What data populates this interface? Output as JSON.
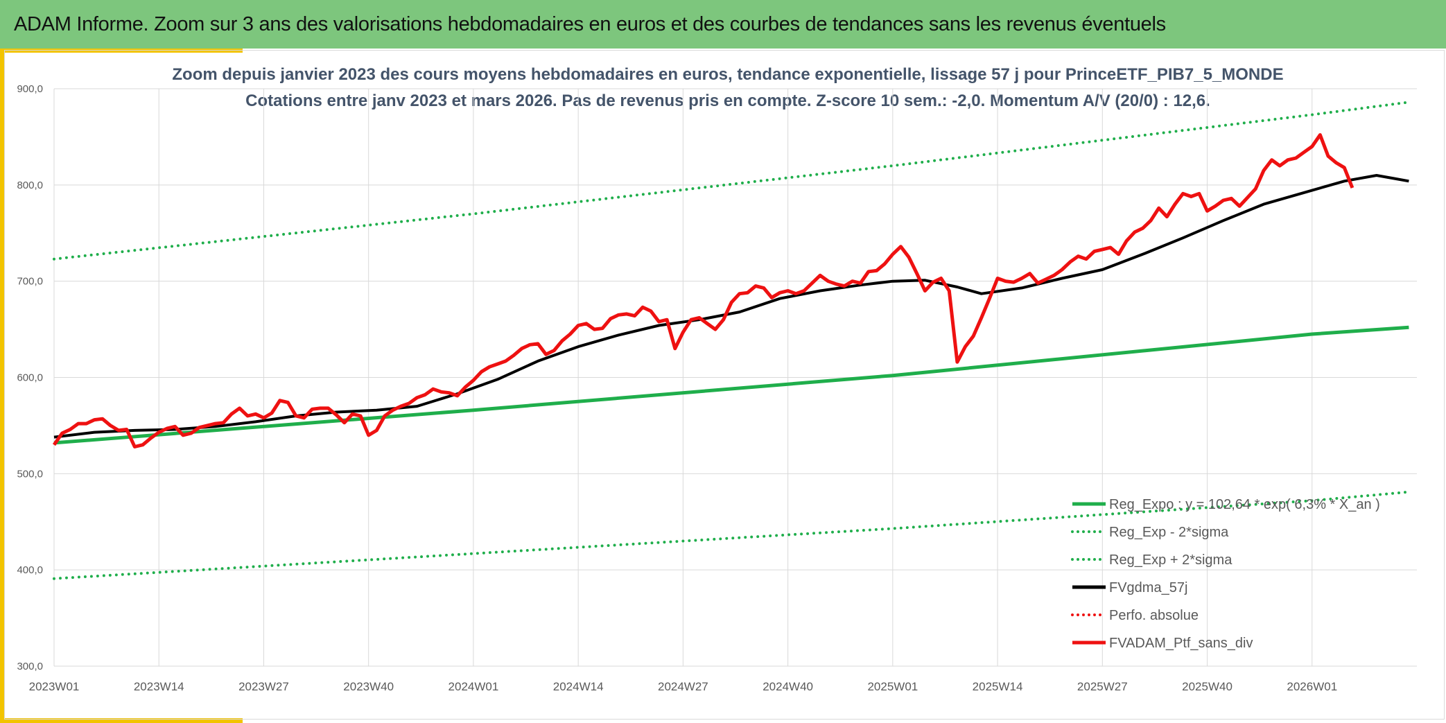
{
  "header": {
    "title": "ADAM Informe. Zoom sur 3 ans des valorisations hebdomadaires en euros et des courbes de tendances sans les revenus éventuels"
  },
  "colors": {
    "header_bg": "#7dc67d",
    "accent_yellow": "#f2c400",
    "trend_green": "#1fae4b",
    "gdma_black": "#000000",
    "portfolio_red": "#ee1111"
  },
  "chart_data": {
    "type": "line",
    "title_line1": "Zoom depuis janvier 2023 des cours moyens hebdomadaires en euros, tendance exponentielle, lissage 57 j pour PrinceETF_PIB7_5_MONDE",
    "title_line2": "Cotations entre janv 2023 et mars 2026. Pas de revenus pris en compte. Z-score 10 sem.: -2,0. Momentum A/V (20/0) : 12,6.",
    "ylim": [
      300,
      900
    ],
    "yticks": [
      "300,0",
      "400,0",
      "500,0",
      "600,0",
      "700,0",
      "800,0",
      "900,0"
    ],
    "xticks": [
      "2023W01",
      "2023W14",
      "2023W27",
      "2023W40",
      "2024W01",
      "2024W14",
      "2024W27",
      "2024W40",
      "2025W01",
      "2025W14",
      "2025W27",
      "2025W40",
      "2026W01"
    ],
    "n_weeks": 169,
    "grid": true,
    "legend_position": "bottom-right",
    "legend": [
      {
        "label": "Reg_Expo : y = 102,64 * exp( 6,3% * X_an )",
        "style": "solid",
        "color": "#1fae4b"
      },
      {
        "label": "Reg_Exp - 2*sigma",
        "style": "dotted",
        "color": "#1fae4b"
      },
      {
        "label": "Reg_Exp + 2*sigma",
        "style": "dotted",
        "color": "#1fae4b"
      },
      {
        "label": "FVgdma_57j",
        "style": "solid",
        "color": "#000000"
      },
      {
        "label": "Perfo. absolue",
        "style": "dotted",
        "color": "#ee1111"
      },
      {
        "label": "FVADAM_Ptf_sans_div",
        "style": "solid",
        "color": "#ee1111"
      }
    ],
    "series": [
      {
        "name": "Reg_Expo : y = 102,64 * exp( 6,3% * X_an )",
        "style": "solid",
        "points": [
          [
            0,
            532
          ],
          [
            52,
            566
          ],
          [
            104,
            602
          ],
          [
            156,
            645
          ],
          [
            168,
            652
          ]
        ]
      },
      {
        "name": "Reg_Exp - 2*sigma",
        "style": "dotted",
        "points": [
          [
            0,
            391
          ],
          [
            52,
            417
          ],
          [
            104,
            443
          ],
          [
            156,
            472
          ],
          [
            168,
            481
          ]
        ]
      },
      {
        "name": "Reg_Exp + 2*sigma",
        "style": "dotted",
        "points": [
          [
            0,
            723
          ],
          [
            52,
            770
          ],
          [
            104,
            820
          ],
          [
            156,
            873
          ],
          [
            168,
            886
          ]
        ]
      },
      {
        "name": "FVgdma_57j",
        "style": "solid",
        "points": [
          [
            0,
            538
          ],
          [
            5,
            543
          ],
          [
            10,
            545
          ],
          [
            15,
            546
          ],
          [
            20,
            549
          ],
          [
            25,
            554
          ],
          [
            30,
            560
          ],
          [
            35,
            564
          ],
          [
            40,
            566
          ],
          [
            45,
            570
          ],
          [
            50,
            583
          ],
          [
            55,
            598
          ],
          [
            60,
            617
          ],
          [
            65,
            632
          ],
          [
            70,
            644
          ],
          [
            75,
            654
          ],
          [
            80,
            660
          ],
          [
            85,
            668
          ],
          [
            90,
            682
          ],
          [
            95,
            690
          ],
          [
            100,
            696
          ],
          [
            104,
            700
          ],
          [
            108,
            701
          ],
          [
            112,
            694
          ],
          [
            115,
            687
          ],
          [
            120,
            693
          ],
          [
            125,
            703
          ],
          [
            130,
            712
          ],
          [
            135,
            728
          ],
          [
            140,
            745
          ],
          [
            145,
            763
          ],
          [
            150,
            780
          ],
          [
            155,
            792
          ],
          [
            160,
            804
          ],
          [
            164,
            810
          ],
          [
            166,
            807
          ],
          [
            168,
            804
          ]
        ]
      },
      {
        "name": "FVADAM_Ptf_sans_div",
        "style": "solid",
        "points": [
          [
            0,
            530
          ],
          [
            1,
            542
          ],
          [
            2,
            546
          ],
          [
            3,
            552
          ],
          [
            4,
            552
          ],
          [
            5,
            556
          ],
          [
            6,
            557
          ],
          [
            7,
            550
          ],
          [
            8,
            545
          ],
          [
            9,
            546
          ],
          [
            10,
            528
          ],
          [
            11,
            530
          ],
          [
            12,
            537
          ],
          [
            13,
            543
          ],
          [
            14,
            547
          ],
          [
            15,
            549
          ],
          [
            16,
            540
          ],
          [
            17,
            542
          ],
          [
            18,
            548
          ],
          [
            19,
            550
          ],
          [
            20,
            552
          ],
          [
            21,
            553
          ],
          [
            22,
            562
          ],
          [
            23,
            568
          ],
          [
            24,
            560
          ],
          [
            25,
            562
          ],
          [
            26,
            558
          ],
          [
            27,
            563
          ],
          [
            28,
            576
          ],
          [
            29,
            574
          ],
          [
            30,
            560
          ],
          [
            31,
            558
          ],
          [
            32,
            567
          ],
          [
            33,
            568
          ],
          [
            34,
            568
          ],
          [
            35,
            561
          ],
          [
            36,
            553
          ],
          [
            37,
            562
          ],
          [
            38,
            560
          ],
          [
            39,
            540
          ],
          [
            40,
            545
          ],
          [
            41,
            560
          ],
          [
            42,
            566
          ],
          [
            43,
            570
          ],
          [
            44,
            573
          ],
          [
            45,
            579
          ],
          [
            46,
            582
          ],
          [
            47,
            588
          ],
          [
            48,
            585
          ],
          [
            49,
            584
          ],
          [
            50,
            581
          ],
          [
            51,
            590
          ],
          [
            52,
            597
          ],
          [
            53,
            606
          ],
          [
            54,
            611
          ],
          [
            55,
            614
          ],
          [
            56,
            617
          ],
          [
            57,
            623
          ],
          [
            58,
            630
          ],
          [
            59,
            634
          ],
          [
            60,
            635
          ],
          [
            61,
            624
          ],
          [
            62,
            628
          ],
          [
            63,
            638
          ],
          [
            64,
            645
          ],
          [
            65,
            654
          ],
          [
            66,
            656
          ],
          [
            67,
            650
          ],
          [
            68,
            651
          ],
          [
            69,
            661
          ],
          [
            70,
            665
          ],
          [
            71,
            666
          ],
          [
            72,
            664
          ],
          [
            73,
            673
          ],
          [
            74,
            669
          ],
          [
            75,
            658
          ],
          [
            76,
            660
          ],
          [
            77,
            630
          ],
          [
            78,
            647
          ],
          [
            79,
            660
          ],
          [
            80,
            662
          ],
          [
            81,
            656
          ],
          [
            82,
            650
          ],
          [
            83,
            660
          ],
          [
            84,
            678
          ],
          [
            85,
            687
          ],
          [
            86,
            688
          ],
          [
            87,
            695
          ],
          [
            88,
            693
          ],
          [
            89,
            683
          ],
          [
            90,
            688
          ],
          [
            91,
            690
          ],
          [
            92,
            687
          ],
          [
            93,
            690
          ],
          [
            94,
            698
          ],
          [
            95,
            706
          ],
          [
            96,
            700
          ],
          [
            97,
            697
          ],
          [
            98,
            695
          ],
          [
            99,
            700
          ],
          [
            100,
            698
          ],
          [
            101,
            710
          ],
          [
            102,
            711
          ],
          [
            103,
            718
          ],
          [
            104,
            728
          ],
          [
            105,
            736
          ],
          [
            106,
            725
          ],
          [
            107,
            708
          ],
          [
            108,
            690
          ],
          [
            109,
            699
          ],
          [
            110,
            703
          ],
          [
            111,
            690
          ],
          [
            112,
            616
          ],
          [
            113,
            632
          ],
          [
            114,
            643
          ],
          [
            115,
            662
          ],
          [
            116,
            682
          ],
          [
            117,
            703
          ],
          [
            118,
            700
          ],
          [
            119,
            699
          ],
          [
            120,
            703
          ],
          [
            121,
            708
          ],
          [
            122,
            698
          ],
          [
            123,
            702
          ],
          [
            124,
            706
          ],
          [
            125,
            712
          ],
          [
            126,
            720
          ],
          [
            127,
            726
          ],
          [
            128,
            723
          ],
          [
            129,
            731
          ],
          [
            130,
            733
          ],
          [
            131,
            735
          ],
          [
            132,
            728
          ],
          [
            133,
            742
          ],
          [
            134,
            751
          ],
          [
            135,
            755
          ],
          [
            136,
            763
          ],
          [
            137,
            776
          ],
          [
            138,
            767
          ],
          [
            139,
            780
          ],
          [
            140,
            791
          ],
          [
            141,
            788
          ],
          [
            142,
            791
          ],
          [
            143,
            773
          ],
          [
            144,
            778
          ],
          [
            145,
            784
          ],
          [
            146,
            786
          ],
          [
            147,
            778
          ],
          [
            148,
            787
          ],
          [
            149,
            796
          ],
          [
            150,
            815
          ],
          [
            151,
            826
          ],
          [
            152,
            820
          ],
          [
            153,
            826
          ],
          [
            154,
            828
          ],
          [
            155,
            834
          ],
          [
            156,
            840
          ],
          [
            157,
            852
          ],
          [
            158,
            830
          ],
          [
            159,
            823
          ],
          [
            160,
            818
          ],
          [
            161,
            797
          ]
        ]
      }
    ]
  }
}
